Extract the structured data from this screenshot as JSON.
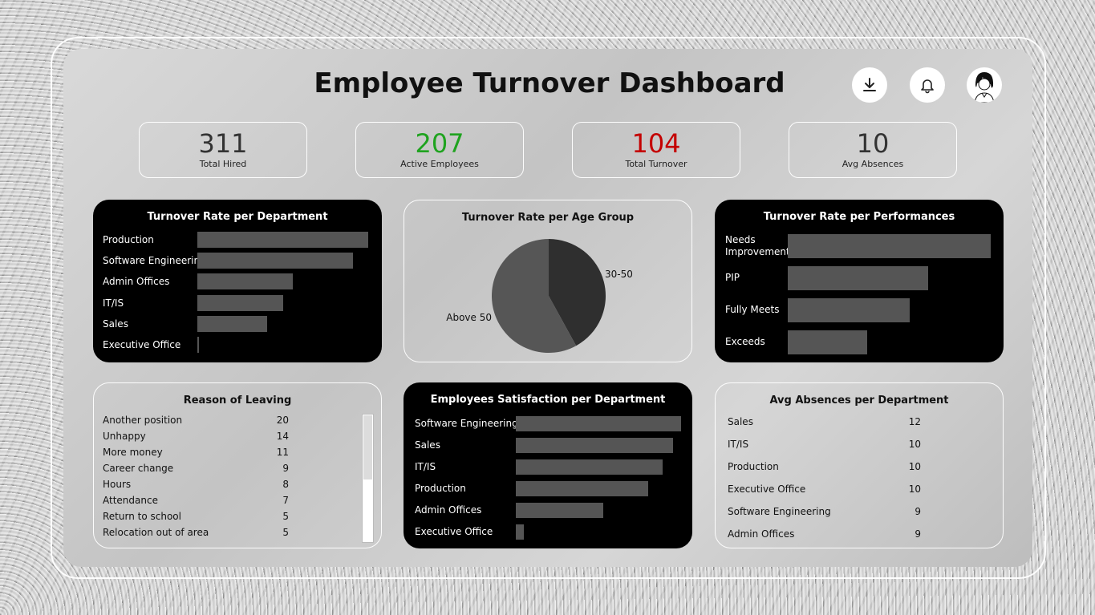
{
  "title": "Employee Turnover Dashboard",
  "kpis": [
    {
      "value": "311",
      "label": "Total Hired",
      "color": "#333333"
    },
    {
      "value": "207",
      "label": "Active Employees",
      "color": "#1fa31f"
    },
    {
      "value": "104",
      "label": "Total Turnover",
      "color": "#c40000"
    },
    {
      "value": "10",
      "label": "Avg Absences",
      "color": "#333333"
    }
  ],
  "dept_turnover": {
    "title": "Turnover Rate per Department",
    "chart_data": {
      "type": "bar",
      "categories": [
        "Production",
        "Software Engineering",
        "Admin Offices",
        "IT/IS",
        "Sales",
        "Executive Office"
      ],
      "values": [
        100,
        91,
        56,
        50,
        41,
        1
      ]
    }
  },
  "age_turnover": {
    "title": "Turnover Rate per Age Group",
    "chart_data": {
      "type": "pie",
      "labels": [
        "30-50",
        "Above 50"
      ],
      "values": [
        42,
        58
      ],
      "colors": [
        "#2f2f2f",
        "#565656"
      ]
    }
  },
  "perf_turnover": {
    "title": "Turnover Rate per Performances",
    "chart_data": {
      "type": "bar",
      "categories": [
        "Needs\nImprovement",
        "PIP",
        "Fully Meets",
        "Exceeds"
      ],
      "values": [
        100,
        69,
        60,
        39
      ]
    }
  },
  "reasons": {
    "title": "Reason of Leaving",
    "rows": [
      {
        "reason": "Another position",
        "count": "20"
      },
      {
        "reason": "Unhappy",
        "count": "14"
      },
      {
        "reason": "More money",
        "count": "11"
      },
      {
        "reason": "Career change",
        "count": "9"
      },
      {
        "reason": "Hours",
        "count": "8"
      },
      {
        "reason": "Attendance",
        "count": "7"
      },
      {
        "reason": "Return to school",
        "count": "5"
      },
      {
        "reason": "Relocation out of area",
        "count": "5"
      }
    ]
  },
  "satisfaction": {
    "title": "Employees Satisfaction per Department",
    "chart_data": {
      "type": "bar",
      "categories": [
        "Software Engineering",
        "Sales",
        "IT/IS",
        "Production",
        "Admin Offices",
        "Executive Office"
      ],
      "values": [
        100,
        95,
        89,
        80,
        53,
        5
      ]
    }
  },
  "absences": {
    "title": "Avg Absences per Department",
    "rows": [
      {
        "dept": "Sales",
        "value": "12"
      },
      {
        "dept": "IT/IS",
        "value": "10"
      },
      {
        "dept": "Production",
        "value": "10"
      },
      {
        "dept": "Executive Office",
        "value": "10"
      },
      {
        "dept": "Software Engineering",
        "value": "9"
      },
      {
        "dept": "Admin Offices",
        "value": "9"
      }
    ]
  },
  "icons": {
    "download": "download-icon",
    "bell": "bell-icon",
    "avatar": "avatar"
  }
}
